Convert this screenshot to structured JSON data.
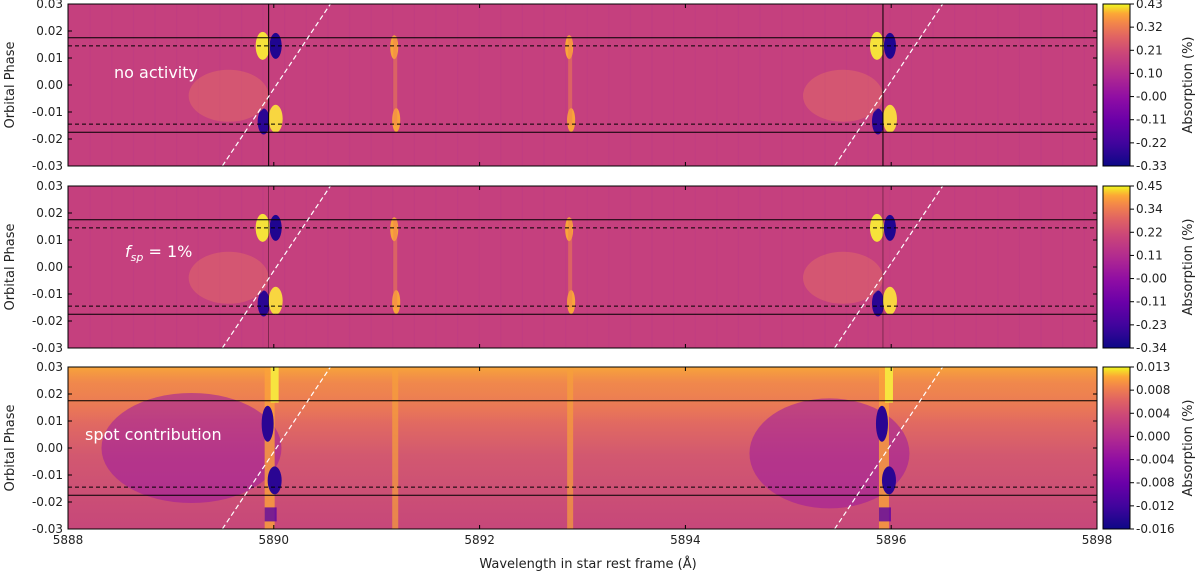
{
  "figure": {
    "xlabel": "Wavelength in star rest frame (Å)",
    "colormap": "plasma",
    "colors": {
      "low": "#0d0887",
      "mid": "#cc4778",
      "high": "#f0f921",
      "transit_lines": "#000000",
      "planet_track": "#ffffff"
    }
  },
  "chart_data": [
    {
      "type": "heatmap",
      "annotation": "no activity",
      "ylabel": "Orbital Phase",
      "xlim": [
        5888,
        5898
      ],
      "ylim": [
        -0.03,
        0.03
      ],
      "x_ticks": [
        5888,
        5890,
        5892,
        5894,
        5896,
        5898
      ],
      "y_ticks": [
        "0.03",
        "0.02",
        "0.01",
        "0.00",
        "-0.01",
        "-0.02",
        "-0.03"
      ],
      "colorbar": {
        "label": "Absorption (%)",
        "vmin": -0.33,
        "vmax": 0.43,
        "ticks": [
          "0.43",
          "0.32",
          "0.21",
          "0.10",
          "-0.00",
          "-0.11",
          "-0.22",
          "-0.33"
        ]
      },
      "features": {
        "line_centers": [
          5889.95,
          5895.92
        ],
        "weak_lines": [
          5891.18,
          5892.88
        ],
        "contact_phases_solid": [
          0.0175,
          -0.0175
        ],
        "contact_phases_dashed": [
          0.0145,
          -0.0145
        ],
        "planet_track_endpoints": [
          [
            5889.5,
            -0.03
          ],
          [
            5890.55,
            0.03
          ]
        ],
        "planet_track_endpoints_2": [
          [
            5895.45,
            -0.03
          ],
          [
            5896.5,
            0.03
          ]
        ]
      }
    },
    {
      "type": "heatmap",
      "annotation": "f_sp = 1%",
      "annotation_main": "f",
      "annotation_sub": "sp",
      "annotation_rest": " = 1%",
      "ylabel": "Orbital Phase",
      "xlim": [
        5888,
        5898
      ],
      "ylim": [
        -0.03,
        0.03
      ],
      "x_ticks": [
        5888,
        5890,
        5892,
        5894,
        5896,
        5898
      ],
      "y_ticks": [
        "0.03",
        "0.02",
        "0.01",
        "0.00",
        "-0.01",
        "-0.02",
        "-0.03"
      ],
      "colorbar": {
        "label": "Absorption (%)",
        "vmin": -0.34,
        "vmax": 0.45,
        "ticks": [
          "0.45",
          "0.34",
          "0.22",
          "0.11",
          "-0.00",
          "-0.11",
          "-0.23",
          "-0.34"
        ]
      },
      "features": {
        "line_centers": [
          5889.95,
          5895.92
        ],
        "weak_lines": [
          5891.18,
          5892.88
        ],
        "contact_phases_solid": [
          0.0175,
          -0.0175
        ],
        "contact_phases_dashed": [
          0.0145,
          -0.0145
        ],
        "planet_track_endpoints": [
          [
            5889.5,
            -0.03
          ],
          [
            5890.55,
            0.03
          ]
        ],
        "planet_track_endpoints_2": [
          [
            5895.45,
            -0.03
          ],
          [
            5896.5,
            0.03
          ]
        ]
      }
    },
    {
      "type": "heatmap",
      "annotation": "spot contribution",
      "ylabel": "Orbital Phase",
      "xlabel": "Wavelength in star rest frame (Å)",
      "xlim": [
        5888,
        5898
      ],
      "ylim": [
        -0.03,
        0.03
      ],
      "x_ticks": [
        5888,
        5890,
        5892,
        5894,
        5896,
        5898
      ],
      "y_ticks": [
        "0.03",
        "0.02",
        "0.01",
        "0.00",
        "-0.01",
        "-0.02",
        "-0.03"
      ],
      "colorbar": {
        "label": "Absorption (%)",
        "vmin": -0.016,
        "vmax": 0.013,
        "ticks": [
          "0.013",
          "0.008",
          "0.004",
          "0.000",
          "-0.004",
          "-0.008",
          "-0.012",
          "-0.016"
        ]
      },
      "features": {
        "line_centers": [
          5889.95,
          5895.92
        ],
        "weak_lines": [
          5891.18,
          5892.88
        ],
        "contact_phases_solid": [
          0.0175,
          -0.0175
        ],
        "contact_phases_dashed": [
          -0.0145
        ],
        "planet_track_endpoints": [
          [
            5889.5,
            -0.03
          ],
          [
            5890.55,
            0.03
          ]
        ],
        "planet_track_endpoints_2": [
          [
            5895.45,
            -0.03
          ],
          [
            5896.5,
            0.03
          ]
        ]
      }
    }
  ]
}
